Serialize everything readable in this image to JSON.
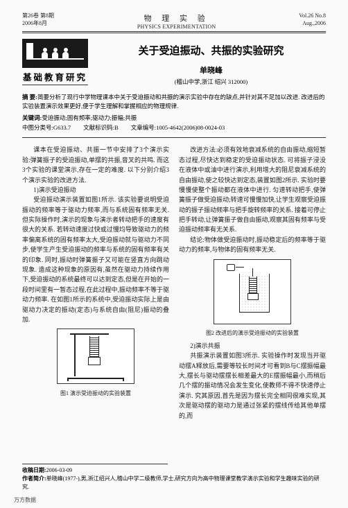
{
  "journal": {
    "title_cn": "物 理 实 验",
    "title_en": "PHYSICS EXPERIMENTATION",
    "volume_issue_cn": "第26卷 第8期",
    "date_cn": "2006年8月",
    "volume_issue_en": "Vol.26 No.8",
    "date_en": "Aug.,2006"
  },
  "section_badge": "基础教育研究",
  "article": {
    "title": "关于受迫振动、共振的实验研究",
    "author": "单晓峰",
    "affiliation": "(稽山中学,浙江 绍兴 312000)"
  },
  "abstract": {
    "label": "摘 要:",
    "text": "简要分析了现行中学物理课本中关于受迫振动和共振的演示实验中存在的缺点,并针对其不足加以改进. 改进后的实验装置演示效果更好,便于学生理解和掌握相应的物理规律."
  },
  "keywords": {
    "label": "关键词:",
    "text": "受迫振动;固有频率;驱动力;振幅;共振"
  },
  "classno": {
    "label": "中图分类号:",
    "value": "G633.7"
  },
  "doccode": {
    "label": "文献标识码:",
    "value": "B"
  },
  "articleid": {
    "label": "文章编号:",
    "value": "1005-4642(2006)08-0024-03"
  },
  "body": {
    "left": {
      "p1": "课本在受迫振动、共振一节中安排了3个演示实验:弹簧振子的受迫振动,单摆的共振,音叉的共鸣. 而这3个实验的课堂演示,存在一定的难度. 以下分别介绍3个演示实验的改进方法.",
      "h1": "1)演示受迫振动",
      "p2": "受迫振动演示装置如图1所示. 该实验要说明受迫振动的频率等于驱动力频率,而与系统固有频率无关. 但实际操作时,演示的现象与演示者转动把手的速度有很大的关系. 若转动速度过快或过慢均导致驱动力的频率偏离系统的固有频率太大,受迫振动就与驱动力不同步,使学生产生受迫振动的频率与系统的固有频率有关的印象. 同时,振动时弹簧振子又可能在竖直方向跳动现象. 造成这种现象的原因有,虽然在驱动力持续作用下,受迫振动的系统最终可以达到定态,但是在开始的一段时间里有一暂态过程,在此过程中,振动频率不等于驱动力频率. 在如图1所示的系统中,受迫振动实际上是由驱动力决定的振动(定态)与系统自由(阻尼)振动的叠加.",
      "fig1_caption": "图1 演示受迫振动的实验装置"
    },
    "right": {
      "p1": "改进方法:必须有效地衰减系统的自由振动,缩短暂态过程,尽快达到稳定的受迫振动状态. 可将振子浸没在液体中或油中进行演示,利用增大的阻尼衰减系统的自由振动,使之较快达到定态,装置如图2所示. 实验时要慢慢使整个振动都在液体中进行. 匀速转动把手,使弹簧振子做受迫振动;转速可慢慢加快,让学生观察受迫振动的振子振动频率与把手旋转频率的关系. 接着可停止把手转动,让弹簧振子做自由振动,观察其固有频率与受迫振动频率有无关系.",
      "p2": "结论:物体做受迫振动时,振动稳定后的频率等于驱动力的频率,与物体的固有频率无关.",
      "fig2_caption": "图2 改进后的演示受迫振动的实验装置",
      "h2": "2)演示共振",
      "p3": "共振演示装置如图3所示. 实验操作时发现当开驱动摆A释放后,需要等较长时间才可看到B与C摆振幅最大,摆长与驱动摆摆长相差最大的E摆振幅最小,而稍后几个摆的振动情况会发生变化,使教师不得不快速停止演示. 究其原因,首先是因为摆长完全相同很难实现,其次是驱动摆的驱动力是通过张紧的摆线传给其他单摆的,而"
    }
  },
  "footer": {
    "received_label": "收稿日期:",
    "received": "2006-03-09",
    "author_label": "作者简介:",
    "author_bio": "单晓峰(1977-),男,浙江绍兴人,稽山中学二级教师,学士,研究方向为高中物理课堂教学演示实验和学生趣味实验的研究."
  },
  "watermark": "万方数据",
  "colors": {
    "text": "#1a1a1a",
    "rule": "#333333",
    "bg": "#fafafa"
  }
}
